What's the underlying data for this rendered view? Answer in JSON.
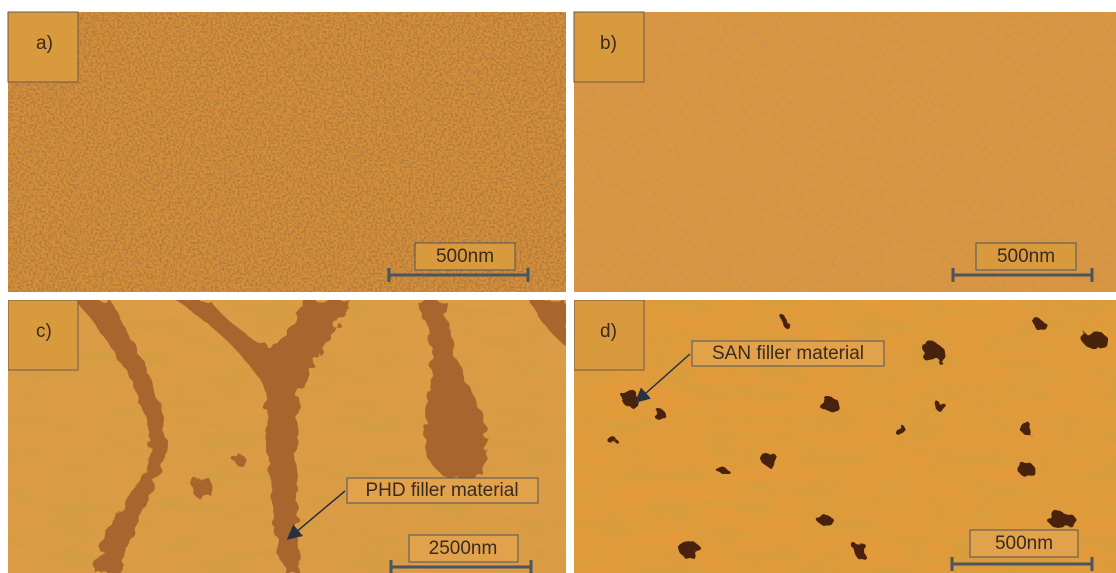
{
  "panels": [
    {
      "label": "a)",
      "scale_bar": "500nm"
    },
    {
      "label": "b)",
      "scale_bar": "500nm"
    },
    {
      "label": "c)",
      "scale_bar": "2500nm",
      "annotation": "PHD filler material"
    },
    {
      "label": "d)",
      "scale_bar": "500nm",
      "annotation": "SAN filler material"
    }
  ]
}
